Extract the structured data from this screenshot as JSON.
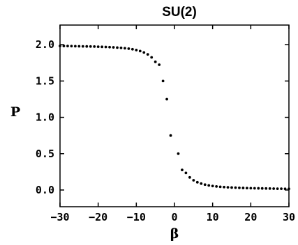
{
  "chart_data": {
    "type": "scatter",
    "title": "SU(2)",
    "xlabel": "β",
    "ylabel": "P",
    "xlim": [
      -30,
      30
    ],
    "ylim": [
      -0.23,
      2.27
    ],
    "xticks": [
      -30,
      -20,
      -10,
      0,
      10,
      20,
      30
    ],
    "xtick_labels": [
      "−30",
      "−20",
      "−10",
      "0",
      "10",
      "20",
      "30"
    ],
    "yticks": [
      0.0,
      0.5,
      1.0,
      1.5,
      2.0
    ],
    "ytick_labels": [
      "0.0",
      "0.5",
      "1.0",
      "1.5",
      "2.0"
    ],
    "grid": false,
    "legend": "none",
    "marker_color": "#000000",
    "series": [
      {
        "x": [
          -30,
          -29,
          -28,
          -27,
          -26,
          -25,
          -24,
          -23,
          -22,
          -21,
          -20,
          -19,
          -18,
          -17,
          -16,
          -15,
          -14,
          -13,
          -12,
          -11,
          -10,
          -9,
          -8,
          -7,
          -6,
          -5,
          -4,
          -3,
          -2,
          -1,
          1,
          2,
          3,
          4,
          5,
          6,
          7,
          8,
          9,
          10,
          11,
          12,
          13,
          14,
          15,
          16,
          17,
          18,
          19,
          20,
          21,
          22,
          23,
          24,
          25,
          26,
          27,
          28,
          29,
          30
        ],
        "y": [
          1.983,
          1.982,
          1.981,
          1.98,
          1.979,
          1.978,
          1.977,
          1.976,
          1.975,
          1.974,
          1.972,
          1.97,
          1.968,
          1.966,
          1.963,
          1.96,
          1.956,
          1.951,
          1.945,
          1.937,
          1.926,
          1.912,
          1.893,
          1.866,
          1.826,
          1.764,
          1.724,
          1.5,
          1.25,
          0.75,
          0.5,
          0.276,
          0.236,
          0.174,
          0.134,
          0.107,
          0.088,
          0.074,
          0.063,
          0.055,
          0.049,
          0.044,
          0.04,
          0.037,
          0.034,
          0.032,
          0.03,
          0.028,
          0.026,
          0.025,
          0.024,
          0.023,
          0.022,
          0.021,
          0.02,
          0.019,
          0.018,
          0.018,
          0.017,
          0.017
        ]
      }
    ]
  }
}
